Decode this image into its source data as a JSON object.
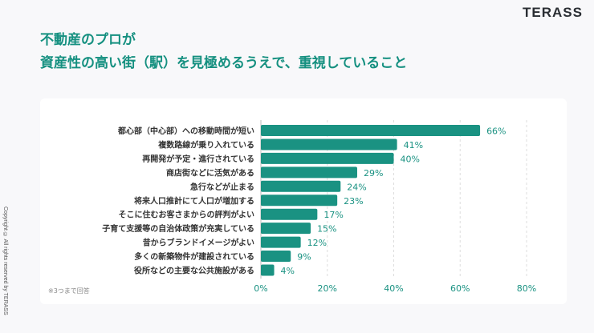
{
  "logo": "TERASS",
  "title_line1": "不動産のプロが",
  "title_line2": "資産性の高い街（駅）を見極めるうえで、重視していること",
  "copyright": "Copyright © All rights reserved by TERASS",
  "note": "※3つまで回答",
  "colors": {
    "bar": "#1a9282",
    "label": "#1a9282",
    "title": "#159080"
  },
  "chart_data": {
    "type": "bar",
    "orientation": "horizontal",
    "categories": [
      "都心部（中心部）への移動時間が短い",
      "複数路線が乗り入れている",
      "再開発が予定・進行されている",
      "商店街などに活気がある",
      "急行などが止まる",
      "将来人口推計にて人口が増加する",
      "そこに住むお客さまからの評判がよい",
      "子育て支援等の自治体政策が充実している",
      "昔からブランドイメージがよい",
      "多くの新築物件が建設されている",
      "役所などの主要な公共施設がある"
    ],
    "values": [
      66,
      41,
      40,
      29,
      24,
      23,
      17,
      15,
      12,
      9,
      4
    ],
    "data_labels": [
      "66%",
      "41%",
      "40%",
      "29%",
      "24%",
      "23%",
      "17%",
      "15%",
      "12%",
      "9%",
      "4%"
    ],
    "xlim": [
      0,
      80
    ],
    "xticks": [
      "0%",
      "20%",
      "40%",
      "60%",
      "80%"
    ],
    "grid": true
  }
}
